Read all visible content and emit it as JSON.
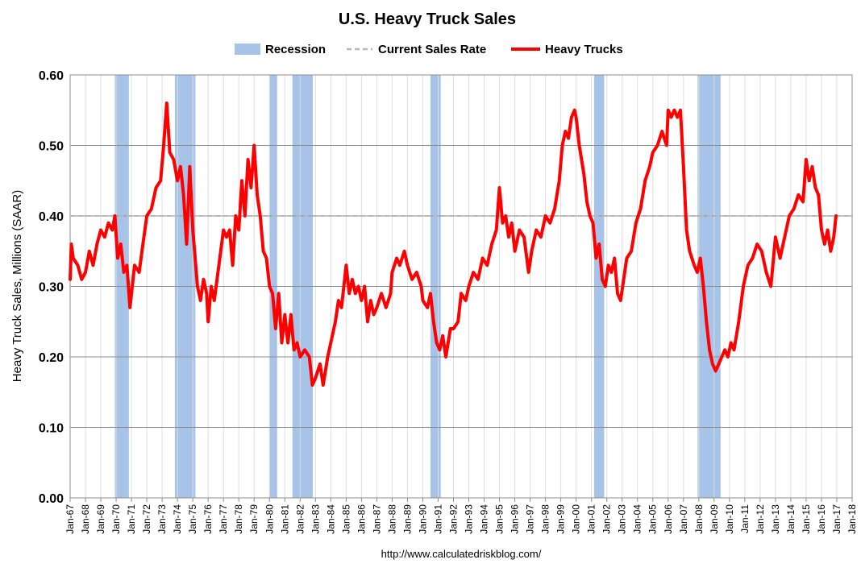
{
  "chart_data": {
    "type": "line",
    "title": "U.S. Heavy Truck Sales",
    "ylabel": "Heavy Truck Sales, Millions (SAAR)",
    "xlabel": "",
    "source": "http://www.calculatedriskblog.com/",
    "ylim": [
      0,
      0.6
    ],
    "y_ticks": [
      0.0,
      0.1,
      0.2,
      0.3,
      0.4,
      0.5,
      0.6
    ],
    "y_tick_labels": [
      "0.00",
      "0.10",
      "0.20",
      "0.30",
      "0.40",
      "0.50",
      "0.60"
    ],
    "xlim": [
      1967,
      2018
    ],
    "x_tick_labels": [
      "Jan-67",
      "Jan-68",
      "Jan-69",
      "Jan-70",
      "Jan-71",
      "Jan-72",
      "Jan-73",
      "Jan-74",
      "Jan-75",
      "Jan-76",
      "Jan-77",
      "Jan-78",
      "Jan-79",
      "Jan-80",
      "Jan-81",
      "Jan-82",
      "Jan-83",
      "Jan-84",
      "Jan-85",
      "Jan-86",
      "Jan-87",
      "Jan-88",
      "Jan-89",
      "Jan-90",
      "Jan-91",
      "Jan-92",
      "Jan-93",
      "Jan-94",
      "Jan-95",
      "Jan-96",
      "Jan-97",
      "Jan-98",
      "Jan-99",
      "Jan-00",
      "Jan-01",
      "Jan-02",
      "Jan-03",
      "Jan-04",
      "Jan-05",
      "Jan-06",
      "Jan-07",
      "Jan-08",
      "Jan-09",
      "Jan-10",
      "Jan-11",
      "Jan-12",
      "Jan-13",
      "Jan-14",
      "Jan-15",
      "Jan-16",
      "Jan-17",
      "Jan-18"
    ],
    "grid": true,
    "legend": {
      "placement": "top",
      "entries": [
        {
          "label": "Recession",
          "style": "band",
          "color": "#a7c4e8"
        },
        {
          "label": "Current Sales Rate",
          "style": "dashed",
          "color": "#b8b8b8"
        },
        {
          "label": "Heavy Trucks",
          "style": "line",
          "color": "#ff0000"
        }
      ]
    },
    "current_sales_rate": 0.4,
    "recessions": [
      [
        1969.92,
        1970.83
      ],
      [
        1973.83,
        1975.17
      ],
      [
        1980.0,
        1980.5
      ],
      [
        1981.5,
        1982.83
      ],
      [
        1990.5,
        1991.17
      ],
      [
        2001.17,
        2001.83
      ],
      [
        2007.92,
        2009.42
      ]
    ],
    "series": [
      {
        "name": "Heavy Trucks",
        "color": "#ff0000",
        "points": [
          [
            1967.0,
            0.31
          ],
          [
            1967.08,
            0.36
          ],
          [
            1967.2,
            0.34
          ],
          [
            1967.5,
            0.33
          ],
          [
            1967.75,
            0.31
          ],
          [
            1968.0,
            0.32
          ],
          [
            1968.25,
            0.35
          ],
          [
            1968.5,
            0.33
          ],
          [
            1968.75,
            0.36
          ],
          [
            1969.0,
            0.38
          ],
          [
            1969.25,
            0.37
          ],
          [
            1969.5,
            0.39
          ],
          [
            1969.75,
            0.38
          ],
          [
            1969.92,
            0.4
          ],
          [
            1970.1,
            0.34
          ],
          [
            1970.3,
            0.36
          ],
          [
            1970.5,
            0.32
          ],
          [
            1970.7,
            0.33
          ],
          [
            1970.9,
            0.27
          ],
          [
            1971.2,
            0.33
          ],
          [
            1971.5,
            0.32
          ],
          [
            1971.75,
            0.36
          ],
          [
            1972.0,
            0.4
          ],
          [
            1972.3,
            0.41
          ],
          [
            1972.6,
            0.44
          ],
          [
            1972.9,
            0.45
          ],
          [
            1973.1,
            0.5
          ],
          [
            1973.3,
            0.56
          ],
          [
            1973.5,
            0.49
          ],
          [
            1973.75,
            0.48
          ],
          [
            1974.0,
            0.45
          ],
          [
            1974.2,
            0.47
          ],
          [
            1974.4,
            0.43
          ],
          [
            1974.6,
            0.36
          ],
          [
            1974.8,
            0.47
          ],
          [
            1975.0,
            0.38
          ],
          [
            1975.3,
            0.3
          ],
          [
            1975.5,
            0.28
          ],
          [
            1975.7,
            0.31
          ],
          [
            1975.9,
            0.29
          ],
          [
            1976.0,
            0.25
          ],
          [
            1976.2,
            0.3
          ],
          [
            1976.4,
            0.28
          ],
          [
            1976.7,
            0.33
          ],
          [
            1977.0,
            0.38
          ],
          [
            1977.2,
            0.37
          ],
          [
            1977.4,
            0.38
          ],
          [
            1977.6,
            0.33
          ],
          [
            1977.8,
            0.4
          ],
          [
            1978.0,
            0.38
          ],
          [
            1978.2,
            0.45
          ],
          [
            1978.4,
            0.4
          ],
          [
            1978.6,
            0.48
          ],
          [
            1978.8,
            0.44
          ],
          [
            1979.0,
            0.5
          ],
          [
            1979.2,
            0.43
          ],
          [
            1979.4,
            0.4
          ],
          [
            1979.6,
            0.35
          ],
          [
            1979.8,
            0.34
          ],
          [
            1980.0,
            0.3
          ],
          [
            1980.2,
            0.29
          ],
          [
            1980.4,
            0.24
          ],
          [
            1980.6,
            0.29
          ],
          [
            1980.8,
            0.22
          ],
          [
            1981.0,
            0.26
          ],
          [
            1981.2,
            0.22
          ],
          [
            1981.4,
            0.26
          ],
          [
            1981.6,
            0.21
          ],
          [
            1981.8,
            0.22
          ],
          [
            1982.0,
            0.2
          ],
          [
            1982.3,
            0.21
          ],
          [
            1982.6,
            0.2
          ],
          [
            1982.8,
            0.16
          ],
          [
            1983.0,
            0.17
          ],
          [
            1983.3,
            0.19
          ],
          [
            1983.5,
            0.16
          ],
          [
            1983.8,
            0.2
          ],
          [
            1984.0,
            0.22
          ],
          [
            1984.3,
            0.25
          ],
          [
            1984.5,
            0.28
          ],
          [
            1984.7,
            0.27
          ],
          [
            1985.0,
            0.33
          ],
          [
            1985.2,
            0.29
          ],
          [
            1985.4,
            0.31
          ],
          [
            1985.6,
            0.29
          ],
          [
            1985.8,
            0.3
          ],
          [
            1986.0,
            0.28
          ],
          [
            1986.2,
            0.3
          ],
          [
            1986.4,
            0.25
          ],
          [
            1986.6,
            0.28
          ],
          [
            1986.8,
            0.26
          ],
          [
            1987.0,
            0.27
          ],
          [
            1987.3,
            0.29
          ],
          [
            1987.6,
            0.27
          ],
          [
            1987.9,
            0.29
          ],
          [
            1988.0,
            0.32
          ],
          [
            1988.3,
            0.34
          ],
          [
            1988.5,
            0.33
          ],
          [
            1988.8,
            0.35
          ],
          [
            1989.0,
            0.33
          ],
          [
            1989.3,
            0.31
          ],
          [
            1989.6,
            0.32
          ],
          [
            1989.9,
            0.3
          ],
          [
            1990.0,
            0.28
          ],
          [
            1990.3,
            0.27
          ],
          [
            1990.5,
            0.29
          ],
          [
            1990.7,
            0.25
          ],
          [
            1990.9,
            0.22
          ],
          [
            1991.1,
            0.21
          ],
          [
            1991.3,
            0.23
          ],
          [
            1991.5,
            0.2
          ],
          [
            1991.8,
            0.24
          ],
          [
            1992.0,
            0.24
          ],
          [
            1992.3,
            0.25
          ],
          [
            1992.5,
            0.29
          ],
          [
            1992.8,
            0.28
          ],
          [
            1993.0,
            0.3
          ],
          [
            1993.3,
            0.32
          ],
          [
            1993.6,
            0.31
          ],
          [
            1993.9,
            0.34
          ],
          [
            1994.2,
            0.33
          ],
          [
            1994.5,
            0.36
          ],
          [
            1994.8,
            0.38
          ],
          [
            1995.0,
            0.44
          ],
          [
            1995.2,
            0.39
          ],
          [
            1995.4,
            0.4
          ],
          [
            1995.6,
            0.37
          ],
          [
            1995.8,
            0.39
          ],
          [
            1996.0,
            0.35
          ],
          [
            1996.3,
            0.38
          ],
          [
            1996.6,
            0.37
          ],
          [
            1996.9,
            0.32
          ],
          [
            1997.1,
            0.35
          ],
          [
            1997.4,
            0.38
          ],
          [
            1997.7,
            0.37
          ],
          [
            1998.0,
            0.4
          ],
          [
            1998.3,
            0.39
          ],
          [
            1998.6,
            0.41
          ],
          [
            1998.9,
            0.45
          ],
          [
            1999.1,
            0.5
          ],
          [
            1999.3,
            0.52
          ],
          [
            1999.5,
            0.51
          ],
          [
            1999.7,
            0.54
          ],
          [
            1999.9,
            0.55
          ],
          [
            2000.0,
            0.54
          ],
          [
            2000.2,
            0.5
          ],
          [
            2000.5,
            0.46
          ],
          [
            2000.7,
            0.42
          ],
          [
            2000.9,
            0.4
          ],
          [
            2001.1,
            0.39
          ],
          [
            2001.3,
            0.34
          ],
          [
            2001.5,
            0.36
          ],
          [
            2001.7,
            0.31
          ],
          [
            2001.9,
            0.3
          ],
          [
            2002.1,
            0.33
          ],
          [
            2002.3,
            0.32
          ],
          [
            2002.5,
            0.34
          ],
          [
            2002.7,
            0.29
          ],
          [
            2002.9,
            0.28
          ],
          [
            2003.1,
            0.31
          ],
          [
            2003.3,
            0.34
          ],
          [
            2003.6,
            0.35
          ],
          [
            2003.9,
            0.39
          ],
          [
            2004.2,
            0.41
          ],
          [
            2004.5,
            0.45
          ],
          [
            2004.8,
            0.47
          ],
          [
            2005.0,
            0.49
          ],
          [
            2005.3,
            0.5
          ],
          [
            2005.6,
            0.52
          ],
          [
            2005.9,
            0.5
          ],
          [
            2006.0,
            0.55
          ],
          [
            2006.2,
            0.54
          ],
          [
            2006.4,
            0.55
          ],
          [
            2006.6,
            0.54
          ],
          [
            2006.8,
            0.55
          ],
          [
            2007.0,
            0.47
          ],
          [
            2007.2,
            0.38
          ],
          [
            2007.4,
            0.35
          ],
          [
            2007.7,
            0.33
          ],
          [
            2007.9,
            0.32
          ],
          [
            2008.1,
            0.34
          ],
          [
            2008.3,
            0.3
          ],
          [
            2008.5,
            0.25
          ],
          [
            2008.7,
            0.21
          ],
          [
            2008.9,
            0.19
          ],
          [
            2009.1,
            0.18
          ],
          [
            2009.3,
            0.19
          ],
          [
            2009.5,
            0.2
          ],
          [
            2009.7,
            0.21
          ],
          [
            2009.9,
            0.2
          ],
          [
            2010.1,
            0.22
          ],
          [
            2010.3,
            0.21
          ],
          [
            2010.6,
            0.25
          ],
          [
            2010.9,
            0.3
          ],
          [
            2011.2,
            0.33
          ],
          [
            2011.5,
            0.34
          ],
          [
            2011.8,
            0.36
          ],
          [
            2012.1,
            0.35
          ],
          [
            2012.4,
            0.32
          ],
          [
            2012.7,
            0.3
          ],
          [
            2013.0,
            0.37
          ],
          [
            2013.3,
            0.34
          ],
          [
            2013.6,
            0.37
          ],
          [
            2013.9,
            0.4
          ],
          [
            2014.2,
            0.41
          ],
          [
            2014.5,
            0.43
          ],
          [
            2014.8,
            0.42
          ],
          [
            2015.0,
            0.48
          ],
          [
            2015.2,
            0.45
          ],
          [
            2015.4,
            0.47
          ],
          [
            2015.6,
            0.44
          ],
          [
            2015.8,
            0.43
          ],
          [
            2016.0,
            0.38
          ],
          [
            2016.2,
            0.36
          ],
          [
            2016.4,
            0.38
          ],
          [
            2016.6,
            0.35
          ],
          [
            2016.8,
            0.37
          ],
          [
            2016.95,
            0.4
          ]
        ]
      }
    ]
  }
}
